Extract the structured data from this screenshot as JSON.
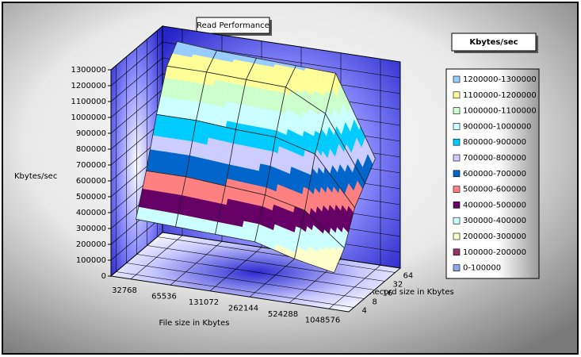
{
  "chart_data": {
    "type": "surface",
    "title": "Read Performance",
    "z_label": "Kbytes/sec",
    "x_label": "File size in Kbytes",
    "y_label": "Record size in Kbytes",
    "legend_title": "Kbytes/sec",
    "categories": [
      32768,
      65536,
      131072,
      262144,
      524288,
      1048576
    ],
    "depth_categories": [
      4,
      8,
      16,
      32,
      64
    ],
    "values": [
      [
        350000,
        340000,
        330000,
        320000,
        250000,
        200000
      ],
      [
        600000,
        600000,
        580000,
        560000,
        500000,
        300000
      ],
      [
        900000,
        900000,
        880000,
        870000,
        800000,
        500000
      ],
      [
        1150000,
        1150000,
        1140000,
        1130000,
        1000000,
        600000
      ],
      [
        1250000,
        1230000,
        1220000,
        1210000,
        1200000,
        700000
      ]
    ],
    "zlim": [
      0,
      1300000
    ],
    "zticks": [
      0,
      100000,
      200000,
      300000,
      400000,
      500000,
      600000,
      700000,
      800000,
      900000,
      1000000,
      1100000,
      1200000,
      1300000
    ],
    "bands": [
      {
        "name": "0-100000",
        "color": "#8fa8e8"
      },
      {
        "name": "100000-200000",
        "color": "#993366"
      },
      {
        "name": "200000-300000",
        "color": "#ffffcc"
      },
      {
        "name": "300000-400000",
        "color": "#ccffff"
      },
      {
        "name": "400000-500000",
        "color": "#660066"
      },
      {
        "name": "500000-600000",
        "color": "#ff8080"
      },
      {
        "name": "600000-700000",
        "color": "#0066cc"
      },
      {
        "name": "700000-800000",
        "color": "#ccccff"
      },
      {
        "name": "800000-900000",
        "color": "#00ccff"
      },
      {
        "name": "900000-1000000",
        "color": "#ccffff"
      },
      {
        "name": "1000000-1100000",
        "color": "#ccffcc"
      },
      {
        "name": "1100000-1200000",
        "color": "#ffff99"
      },
      {
        "name": "1200000-1300000",
        "color": "#99ccff"
      }
    ],
    "grid": true
  }
}
